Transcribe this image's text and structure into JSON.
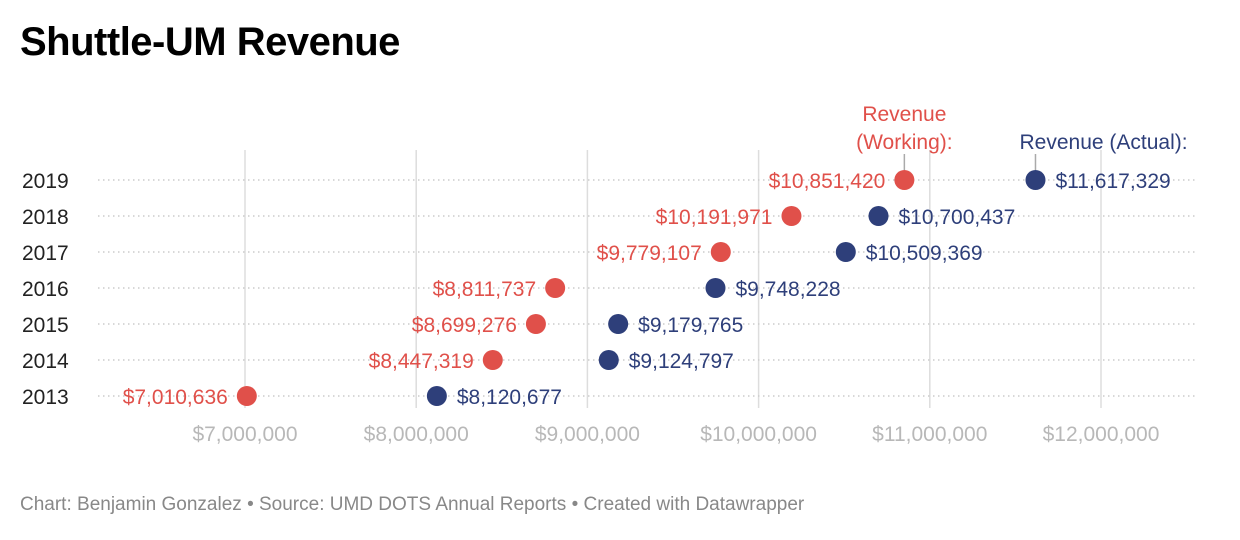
{
  "title": "Shuttle-UM Revenue",
  "footer": {
    "chart_by": "Chart: Benjamin Gonzalez",
    "source": "Source: UMD DOTS Annual Reports",
    "created_with": "Created with Datawrapper",
    "separator": "•"
  },
  "colors": {
    "working": "#e0504a",
    "actual": "#2e3f7a",
    "axis_text": "#b8b8b8",
    "grid": "#dddddd",
    "row_dots": "#cccccc",
    "year_text": "#222222",
    "footer_text": "#888888"
  },
  "chart_data": {
    "type": "range-dot",
    "title": "Shuttle-UM Revenue",
    "series": [
      {
        "name": "Revenue (Working):",
        "label_lines": [
          "Revenue",
          "(Working):"
        ]
      },
      {
        "name": "Revenue (Actual):",
        "label_lines": [
          "Revenue (Actual):"
        ]
      }
    ],
    "rows": [
      {
        "year": "2019",
        "working": 10851420,
        "actual": 11617329,
        "working_label": "$10,851,420",
        "actual_label": "$11,617,329"
      },
      {
        "year": "2018",
        "working": 10191971,
        "actual": 10700437,
        "working_label": "$10,191,971",
        "actual_label": "$10,700,437"
      },
      {
        "year": "2017",
        "working": 9779107,
        "actual": 10509369,
        "working_label": "$9,779,107",
        "actual_label": "$10,509,369"
      },
      {
        "year": "2016",
        "working": 8811737,
        "actual": 9748228,
        "working_label": "$8,811,737",
        "actual_label": "$9,748,228"
      },
      {
        "year": "2015",
        "working": 8699276,
        "actual": 9179765,
        "working_label": "$8,699,276",
        "actual_label": "$9,179,765"
      },
      {
        "year": "2014",
        "working": 8447319,
        "actual": 9124797,
        "working_label": "$8,447,319",
        "actual_label": "$9,124,797"
      },
      {
        "year": "2013",
        "working": 7010636,
        "actual": 8120677,
        "working_label": "$7,010,636",
        "actual_label": "$8,120,677"
      }
    ],
    "x_ticks": [
      {
        "value": 7000000,
        "label": "$7,000,000"
      },
      {
        "value": 8000000,
        "label": "$8,000,000"
      },
      {
        "value": 9000000,
        "label": "$9,000,000"
      },
      {
        "value": 10000000,
        "label": "$10,000,000"
      },
      {
        "value": 11000000,
        "label": "$11,000,000"
      },
      {
        "value": 12000000,
        "label": "$12,000,000"
      }
    ],
    "xlim": [
      7000000,
      12000000
    ],
    "grid": true
  }
}
